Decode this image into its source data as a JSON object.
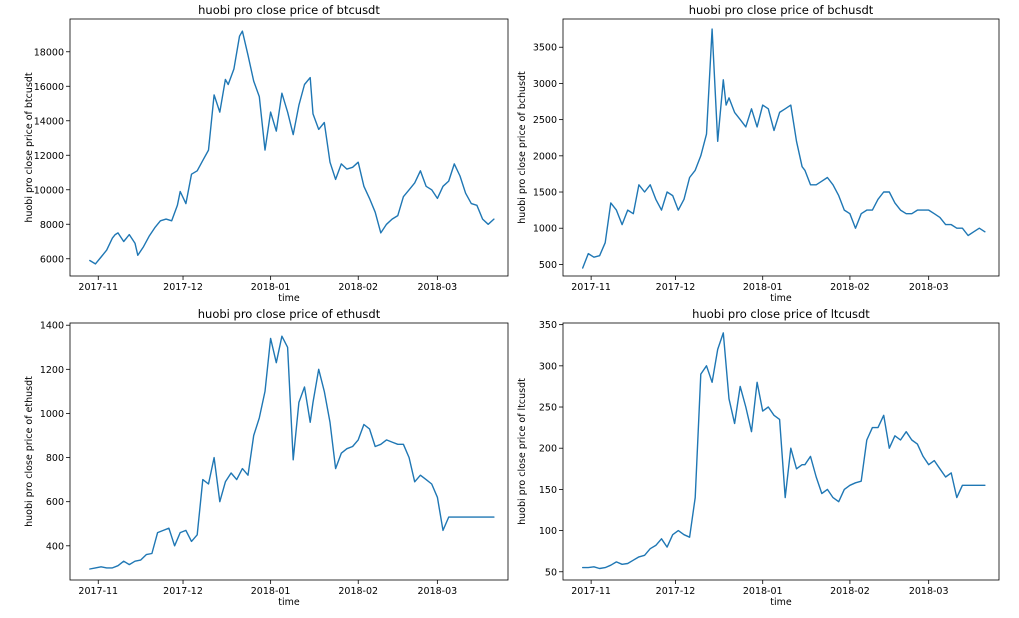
{
  "colors": {
    "line": "#1f77b4",
    "axes": "#000000",
    "background": "#ffffff"
  },
  "chart_data": [
    {
      "type": "line",
      "title": "huobi pro close price of btcusdt",
      "xlabel": "time",
      "ylabel": "huobi pro close price of btcusdt",
      "grid": false,
      "xlim": [
        "2017-10-22",
        "2018-03-26"
      ],
      "ylim": [
        5000,
        19900
      ],
      "xticks": [
        "2017-11-01",
        "2017-12-01",
        "2018-01-01",
        "2018-02-01",
        "2018-03-01"
      ],
      "xticklabels": [
        "2017-11",
        "2017-12",
        "2018-01",
        "2018-02",
        "2018-03"
      ],
      "yticks": [
        6000,
        8000,
        10000,
        12000,
        14000,
        16000,
        18000
      ],
      "series": [
        {
          "x": [
            "2017-10-29",
            "2017-10-31",
            "2017-11-02",
            "2017-11-04",
            "2017-11-06",
            "2017-11-07",
            "2017-11-08",
            "2017-11-10",
            "2017-11-12",
            "2017-11-14",
            "2017-11-15",
            "2017-11-17",
            "2017-11-19",
            "2017-11-21",
            "2017-11-23",
            "2017-11-25",
            "2017-11-27",
            "2017-11-29",
            "2017-11-30",
            "2017-12-02",
            "2017-12-04",
            "2017-12-06",
            "2017-12-08",
            "2017-12-10",
            "2017-12-12",
            "2017-12-14",
            "2017-12-16",
            "2017-12-17",
            "2017-12-19",
            "2017-12-21",
            "2017-12-22",
            "2017-12-24",
            "2017-12-26",
            "2017-12-28",
            "2017-12-30",
            "2018-01-01",
            "2018-01-03",
            "2018-01-05",
            "2018-01-07",
            "2018-01-09",
            "2018-01-11",
            "2018-01-13",
            "2018-01-15",
            "2018-01-16",
            "2018-01-18",
            "2018-01-20",
            "2018-01-22",
            "2018-01-24",
            "2018-01-26",
            "2018-01-28",
            "2018-01-30",
            "2018-02-01",
            "2018-02-03",
            "2018-02-05",
            "2018-02-07",
            "2018-02-09",
            "2018-02-11",
            "2018-02-13",
            "2018-02-15",
            "2018-02-17",
            "2018-02-19",
            "2018-02-21",
            "2018-02-23",
            "2018-02-25",
            "2018-02-27",
            "2018-03-01",
            "2018-03-03",
            "2018-03-05",
            "2018-03-07",
            "2018-03-09",
            "2018-03-11",
            "2018-03-13",
            "2018-03-15",
            "2018-03-17",
            "2018-03-19",
            "2018-03-21"
          ],
          "y": [
            5900,
            5700,
            6100,
            6500,
            7200,
            7400,
            7500,
            7000,
            7400,
            6900,
            6200,
            6700,
            7300,
            7800,
            8200,
            8300,
            8200,
            9100,
            9900,
            9200,
            10900,
            11100,
            11700,
            12300,
            15500,
            14500,
            16400,
            16100,
            17000,
            18900,
            19200,
            17800,
            16300,
            15400,
            12300,
            14500,
            13400,
            15600,
            14500,
            13200,
            14900,
            16100,
            16500,
            14400,
            13500,
            13900,
            11600,
            10600,
            11500,
            11200,
            11300,
            11600,
            10200,
            9500,
            8700,
            7500,
            8000,
            8300,
            8500,
            9600,
            10000,
            10400,
            11100,
            10200,
            10000,
            9500,
            10200,
            10500,
            11500,
            10800,
            9800,
            9200,
            9100,
            8300,
            8000,
            8300
          ]
        }
      ]
    },
    {
      "type": "line",
      "title": "huobi pro close price of bchusdt",
      "xlabel": "time",
      "ylabel": "huobi pro close price of bchusdt",
      "grid": false,
      "xlim": [
        "2017-10-22",
        "2018-03-26"
      ],
      "ylim": [
        340,
        3890
      ],
      "xticks": [
        "2017-11-01",
        "2017-12-01",
        "2018-01-01",
        "2018-02-01",
        "2018-03-01"
      ],
      "xticklabels": [
        "2017-11",
        "2017-12",
        "2018-01",
        "2018-02",
        "2018-03"
      ],
      "yticks": [
        500,
        1000,
        1500,
        2000,
        2500,
        3000,
        3500
      ],
      "series": [
        {
          "x": [
            "2017-10-29",
            "2017-10-31",
            "2017-11-02",
            "2017-11-04",
            "2017-11-06",
            "2017-11-08",
            "2017-11-10",
            "2017-11-12",
            "2017-11-14",
            "2017-11-16",
            "2017-11-18",
            "2017-11-20",
            "2017-11-22",
            "2017-11-24",
            "2017-11-26",
            "2017-11-28",
            "2017-11-30",
            "2017-12-02",
            "2017-12-04",
            "2017-12-06",
            "2017-12-08",
            "2017-12-10",
            "2017-12-12",
            "2017-12-14",
            "2017-12-16",
            "2017-12-18",
            "2017-12-19",
            "2017-12-20",
            "2017-12-22",
            "2017-12-24",
            "2017-12-26",
            "2017-12-28",
            "2017-12-30",
            "2018-01-01",
            "2018-01-03",
            "2018-01-05",
            "2018-01-07",
            "2018-01-09",
            "2018-01-11",
            "2018-01-13",
            "2018-01-15",
            "2018-01-16",
            "2018-01-18",
            "2018-01-20",
            "2018-01-22",
            "2018-01-24",
            "2018-01-26",
            "2018-01-28",
            "2018-01-30",
            "2018-02-01",
            "2018-02-03",
            "2018-02-05",
            "2018-02-07",
            "2018-02-09",
            "2018-02-11",
            "2018-02-13",
            "2018-02-15",
            "2018-02-17",
            "2018-02-19",
            "2018-02-21",
            "2018-02-23",
            "2018-02-25",
            "2018-02-27",
            "2018-03-01",
            "2018-03-03",
            "2018-03-05",
            "2018-03-07",
            "2018-03-09",
            "2018-03-11",
            "2018-03-13",
            "2018-03-15",
            "2018-03-17",
            "2018-03-19",
            "2018-03-21"
          ],
          "y": [
            450,
            650,
            600,
            620,
            800,
            1350,
            1250,
            1050,
            1250,
            1200,
            1600,
            1500,
            1600,
            1400,
            1250,
            1500,
            1450,
            1250,
            1400,
            1700,
            1800,
            2000,
            2300,
            3750,
            2200,
            3050,
            2700,
            2800,
            2600,
            2500,
            2400,
            2650,
            2400,
            2700,
            2650,
            2350,
            2600,
            2650,
            2700,
            2200,
            1850,
            1800,
            1600,
            1600,
            1650,
            1700,
            1600,
            1450,
            1250,
            1200,
            1000,
            1200,
            1250,
            1250,
            1400,
            1500,
            1500,
            1350,
            1250,
            1200,
            1200,
            1250,
            1250,
            1250,
            1200,
            1150,
            1050,
            1050,
            1000,
            1000,
            900,
            950,
            1000,
            950
          ]
        }
      ]
    },
    {
      "type": "line",
      "title": "huobi pro close price of ethusdt",
      "xlabel": "time",
      "ylabel": "huobi pro close price of ethusdt",
      "grid": false,
      "xlim": [
        "2017-10-22",
        "2018-03-26"
      ],
      "ylim": [
        245,
        1410
      ],
      "xticks": [
        "2017-11-01",
        "2017-12-01",
        "2018-01-01",
        "2018-02-01",
        "2018-03-01"
      ],
      "xticklabels": [
        "2017-11",
        "2017-12",
        "2018-01",
        "2018-02",
        "2018-03"
      ],
      "yticks": [
        400,
        600,
        800,
        1000,
        1200,
        1400
      ],
      "series": [
        {
          "x": [
            "2017-10-29",
            "2017-10-31",
            "2017-11-02",
            "2017-11-04",
            "2017-11-06",
            "2017-11-08",
            "2017-11-10",
            "2017-11-12",
            "2017-11-14",
            "2017-11-16",
            "2017-11-18",
            "2017-11-20",
            "2017-11-22",
            "2017-11-24",
            "2017-11-26",
            "2017-11-28",
            "2017-11-30",
            "2017-12-02",
            "2017-12-04",
            "2017-12-06",
            "2017-12-08",
            "2017-12-10",
            "2017-12-12",
            "2017-12-14",
            "2017-12-16",
            "2017-12-18",
            "2017-12-20",
            "2017-12-22",
            "2017-12-24",
            "2017-12-26",
            "2017-12-28",
            "2017-12-30",
            "2018-01-01",
            "2018-01-03",
            "2018-01-05",
            "2018-01-07",
            "2018-01-09",
            "2018-01-11",
            "2018-01-13",
            "2018-01-15",
            "2018-01-16",
            "2018-01-18",
            "2018-01-20",
            "2018-01-22",
            "2018-01-24",
            "2018-01-26",
            "2018-01-28",
            "2018-01-30",
            "2018-02-01",
            "2018-02-03",
            "2018-02-05",
            "2018-02-07",
            "2018-02-09",
            "2018-02-11",
            "2018-02-13",
            "2018-02-15",
            "2018-02-17",
            "2018-02-19",
            "2018-02-21",
            "2018-02-23",
            "2018-02-25",
            "2018-02-27",
            "2018-03-01",
            "2018-03-03",
            "2018-03-05",
            "2018-03-07",
            "2018-03-09",
            "2018-03-11",
            "2018-03-13",
            "2018-03-15",
            "2018-03-17",
            "2018-03-19",
            "2018-03-21"
          ],
          "y": [
            295,
            300,
            305,
            300,
            300,
            310,
            330,
            315,
            330,
            335,
            360,
            365,
            460,
            470,
            480,
            400,
            460,
            470,
            420,
            450,
            700,
            680,
            800,
            600,
            690,
            730,
            700,
            750,
            720,
            900,
            980,
            1100,
            1340,
            1230,
            1350,
            1300,
            790,
            1050,
            1120,
            960,
            1050,
            1200,
            1100,
            960,
            750,
            820,
            840,
            850,
            880,
            950,
            930,
            850,
            860,
            880,
            870,
            860,
            860,
            800,
            690,
            720,
            700,
            680,
            620,
            470,
            530,
            530,
            530,
            530,
            530,
            530,
            530,
            530,
            530
          ]
        }
      ]
    },
    {
      "type": "line",
      "title": "huobi pro close price of ltcusdt",
      "xlabel": "time",
      "ylabel": "huobi pro close price of ltcusdt",
      "grid": false,
      "xlim": [
        "2017-10-22",
        "2018-03-26"
      ],
      "ylim": [
        40,
        352
      ],
      "xticks": [
        "2017-11-01",
        "2017-12-01",
        "2018-01-01",
        "2018-02-01",
        "2018-03-01"
      ],
      "xticklabels": [
        "2017-11",
        "2017-12",
        "2018-01",
        "2018-02",
        "2018-03"
      ],
      "yticks": [
        50,
        100,
        150,
        200,
        250,
        300,
        350
      ],
      "series": [
        {
          "x": [
            "2017-10-29",
            "2017-10-31",
            "2017-11-02",
            "2017-11-04",
            "2017-11-06",
            "2017-11-08",
            "2017-11-10",
            "2017-11-12",
            "2017-11-14",
            "2017-11-16",
            "2017-11-18",
            "2017-11-20",
            "2017-11-22",
            "2017-11-24",
            "2017-11-26",
            "2017-11-28",
            "2017-11-30",
            "2017-12-02",
            "2017-12-04",
            "2017-12-06",
            "2017-12-08",
            "2017-12-10",
            "2017-12-12",
            "2017-12-14",
            "2017-12-16",
            "2017-12-18",
            "2017-12-20",
            "2017-12-22",
            "2017-12-24",
            "2017-12-26",
            "2017-12-28",
            "2017-12-30",
            "2018-01-01",
            "2018-01-03",
            "2018-01-05",
            "2018-01-07",
            "2018-01-09",
            "2018-01-11",
            "2018-01-13",
            "2018-01-15",
            "2018-01-16",
            "2018-01-18",
            "2018-01-20",
            "2018-01-22",
            "2018-01-24",
            "2018-01-26",
            "2018-01-28",
            "2018-01-30",
            "2018-02-01",
            "2018-02-03",
            "2018-02-05",
            "2018-02-07",
            "2018-02-09",
            "2018-02-11",
            "2018-02-13",
            "2018-02-15",
            "2018-02-17",
            "2018-02-19",
            "2018-02-21",
            "2018-02-23",
            "2018-02-25",
            "2018-02-27",
            "2018-03-01",
            "2018-03-03",
            "2018-03-05",
            "2018-03-07",
            "2018-03-09",
            "2018-03-11",
            "2018-03-13",
            "2018-03-15",
            "2018-03-17",
            "2018-03-19",
            "2018-03-21"
          ],
          "y": [
            55,
            55,
            56,
            54,
            55,
            58,
            62,
            59,
            60,
            64,
            68,
            70,
            78,
            82,
            90,
            80,
            95,
            100,
            95,
            92,
            140,
            290,
            300,
            280,
            320,
            340,
            260,
            230,
            275,
            250,
            220,
            280,
            245,
            250,
            240,
            235,
            140,
            200,
            175,
            180,
            180,
            190,
            165,
            145,
            150,
            140,
            135,
            150,
            155,
            158,
            160,
            210,
            225,
            225,
            240,
            200,
            215,
            210,
            220,
            210,
            205,
            190,
            180,
            185,
            175,
            165,
            170,
            140,
            155,
            155,
            155,
            155,
            155
          ]
        }
      ]
    }
  ]
}
